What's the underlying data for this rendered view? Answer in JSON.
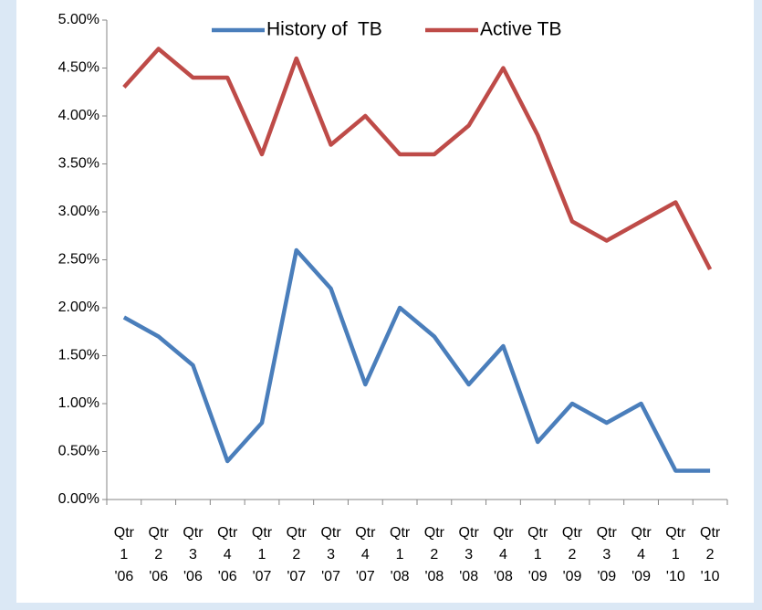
{
  "chart_data": {
    "type": "line",
    "categories": [
      [
        "Qtr",
        "1",
        "'06"
      ],
      [
        "Qtr",
        "2",
        "'06"
      ],
      [
        "Qtr",
        "3",
        "'06"
      ],
      [
        "Qtr",
        "4",
        "'06"
      ],
      [
        "Qtr",
        "1",
        "'07"
      ],
      [
        "Qtr",
        "2",
        "'07"
      ],
      [
        "Qtr",
        "3",
        "'07"
      ],
      [
        "Qtr",
        "4",
        "'07"
      ],
      [
        "Qtr",
        "1",
        "'08"
      ],
      [
        "Qtr",
        "2",
        "'08"
      ],
      [
        "Qtr",
        "3",
        "'08"
      ],
      [
        "Qtr",
        "4",
        "'08"
      ],
      [
        "Qtr",
        "1",
        "'09"
      ],
      [
        "Qtr",
        "2",
        "'09"
      ],
      [
        "Qtr",
        "3",
        "'09"
      ],
      [
        "Qtr",
        "4",
        "'09"
      ],
      [
        "Qtr",
        "1",
        "'10"
      ],
      [
        "Qtr",
        "2",
        "'10"
      ]
    ],
    "series": [
      {
        "name": "History of  TB",
        "color": "#4a7ebb",
        "values": [
          1.9,
          1.7,
          1.4,
          0.4,
          0.8,
          2.6,
          2.2,
          1.2,
          2.0,
          1.7,
          1.2,
          1.6,
          0.6,
          1.0,
          0.8,
          1.0,
          0.3,
          0.3
        ]
      },
      {
        "name": "Active TB",
        "color": "#be4b48",
        "values": [
          4.3,
          4.7,
          4.4,
          4.4,
          3.6,
          4.6,
          3.7,
          4.0,
          3.6,
          3.6,
          3.9,
          4.5,
          3.8,
          2.9,
          2.7,
          2.9,
          3.1,
          2.4
        ]
      }
    ],
    "ylim": [
      0,
      5
    ],
    "yticks": [
      {
        "value": 0,
        "label": "0.00%"
      },
      {
        "value": 0.5,
        "label": "0.50%"
      },
      {
        "value": 1,
        "label": "1.00%"
      },
      {
        "value": 1.5,
        "label": "1.50%"
      },
      {
        "value": 2,
        "label": "2.00%"
      },
      {
        "value": 2.5,
        "label": "2.50%"
      },
      {
        "value": 3,
        "label": "3.00%"
      },
      {
        "value": 3.5,
        "label": "3.50%"
      },
      {
        "value": 4,
        "label": "4.00%"
      },
      {
        "value": 4.5,
        "label": "4.50%"
      },
      {
        "value": 5,
        "label": "5.00%"
      }
    ],
    "grid": false,
    "legend": "top"
  }
}
